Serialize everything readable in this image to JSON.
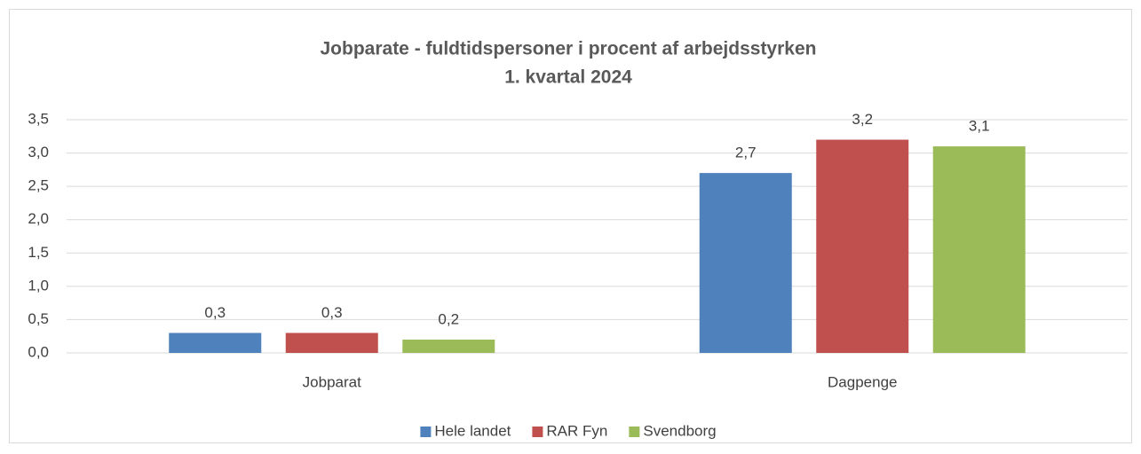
{
  "chart_data": {
    "type": "bar",
    "title": "Jobparate - fuldtidspersoner i procent af arbejdsstyrken",
    "subtitle": "1. kvartal 2024",
    "categories": [
      "Jobparat",
      "Dagpenge"
    ],
    "series": [
      {
        "name": "Hele landet",
        "color": "#4f81bd",
        "values": [
          0.3,
          2.7
        ],
        "value_labels": [
          "0,3",
          "2,7"
        ]
      },
      {
        "name": "RAR Fyn",
        "color": "#c0504d",
        "values": [
          0.3,
          3.2
        ],
        "value_labels": [
          "0,3",
          "3,2"
        ]
      },
      {
        "name": "Svendborg",
        "color": "#9bbb59",
        "values": [
          0.2,
          3.1
        ],
        "value_labels": [
          "0,2",
          "3,1"
        ]
      }
    ],
    "ylim": [
      0,
      3.5
    ],
    "yticks": [
      {
        "value": 0,
        "label": "0,0"
      },
      {
        "value": 0.5,
        "label": "0,5"
      },
      {
        "value": 1,
        "label": "1,0"
      },
      {
        "value": 1.5,
        "label": "1,5"
      },
      {
        "value": 2,
        "label": "2,0"
      },
      {
        "value": 2.5,
        "label": "2,5"
      },
      {
        "value": 3,
        "label": "3,0"
      },
      {
        "value": 3.5,
        "label": "3,5"
      }
    ],
    "grid": true,
    "legend": "bottom"
  }
}
